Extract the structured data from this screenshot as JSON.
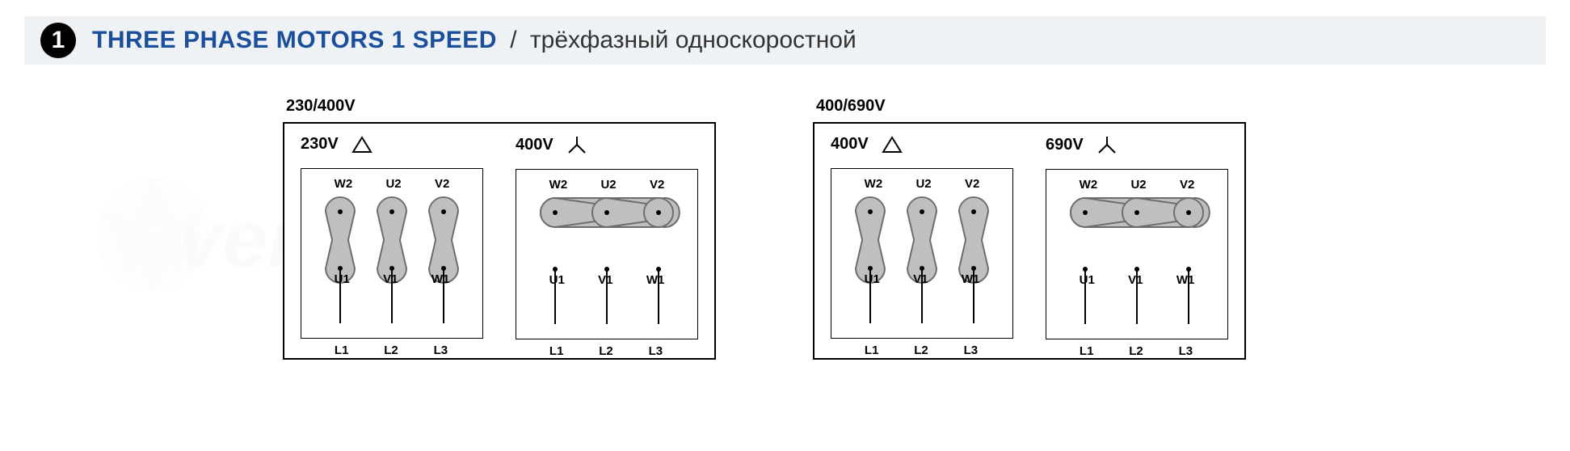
{
  "header": {
    "number": "1",
    "title_primary": "THREE PHASE MOTORS 1 SPEED",
    "title_separator": "/",
    "title_secondary": "трёхфазный односкоростной"
  },
  "colors": {
    "header_bg": "#eef2f5",
    "title_primary": "#1b4f9c",
    "shape_fill": "#bfbfbf",
    "shape_stroke": "#6e6e6e",
    "box_border": "#000000",
    "text": "#000000"
  },
  "groups": [
    {
      "label": "230/400V",
      "panels": [
        {
          "voltage": "230V",
          "symbol": "delta",
          "connection": "delta",
          "top_terminals": [
            "W2",
            "U2",
            "V2"
          ],
          "bottom_terminals": [
            "U1",
            "V1",
            "W1"
          ],
          "lines": [
            "L1",
            "L2",
            "L3"
          ]
        },
        {
          "voltage": "400V",
          "symbol": "star",
          "connection": "star",
          "top_terminals": [
            "W2",
            "U2",
            "V2"
          ],
          "bottom_terminals": [
            "U1",
            "V1",
            "W1"
          ],
          "lines": [
            "L1",
            "L2",
            "L3"
          ]
        }
      ]
    },
    {
      "label": "400/690V",
      "panels": [
        {
          "voltage": "400V",
          "symbol": "delta",
          "connection": "delta",
          "top_terminals": [
            "W2",
            "U2",
            "V2"
          ],
          "bottom_terminals": [
            "U1",
            "V1",
            "W1"
          ],
          "lines": [
            "L1",
            "L2",
            "L3"
          ]
        },
        {
          "voltage": "690V",
          "symbol": "star",
          "connection": "star",
          "top_terminals": [
            "W2",
            "U2",
            "V2"
          ],
          "bottom_terminals": [
            "U1",
            "V1",
            "W1"
          ],
          "lines": [
            "L1",
            "L2",
            "L3"
          ]
        }
      ]
    }
  ],
  "diagram_style": {
    "circle_r": 18,
    "spacing": 64,
    "row_gap": 70,
    "stroke_width": 2,
    "line_drop": 50
  }
}
